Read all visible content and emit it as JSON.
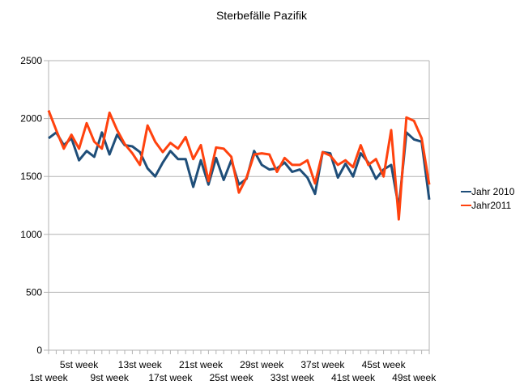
{
  "chart_data": {
    "type": "line",
    "title": "Sterbefälle Pazifik",
    "xlabel": "",
    "ylabel": "",
    "ylim": [
      0,
      2500
    ],
    "yticks": [
      0,
      500,
      1000,
      1500,
      2000,
      2500
    ],
    "grid": true,
    "legend_position": "right",
    "x_tick_labels": [
      {
        "week": 1,
        "label": "1st week",
        "row": 2
      },
      {
        "week": 5,
        "label": "5st week",
        "row": 1
      },
      {
        "week": 9,
        "label": "9st week",
        "row": 2
      },
      {
        "week": 13,
        "label": "13st week",
        "row": 1
      },
      {
        "week": 17,
        "label": "17st week",
        "row": 2
      },
      {
        "week": 21,
        "label": "21st week",
        "row": 1
      },
      {
        "week": 25,
        "label": "25st week",
        "row": 2
      },
      {
        "week": 29,
        "label": "29st week",
        "row": 1
      },
      {
        "week": 33,
        "label": "33st week",
        "row": 2
      },
      {
        "week": 37,
        "label": "37st week",
        "row": 1
      },
      {
        "week": 41,
        "label": "41st week",
        "row": 2
      },
      {
        "week": 45,
        "label": "45st week",
        "row": 1
      },
      {
        "week": 49,
        "label": "49st week",
        "row": 2
      }
    ],
    "x": [
      1,
      2,
      3,
      4,
      5,
      6,
      7,
      8,
      9,
      10,
      11,
      12,
      13,
      14,
      15,
      16,
      17,
      18,
      19,
      20,
      21,
      22,
      23,
      24,
      25,
      26,
      27,
      28,
      29,
      30,
      31,
      32,
      33,
      34,
      35,
      36,
      37,
      38,
      39,
      40,
      41,
      42,
      43,
      44,
      45,
      46,
      47,
      48,
      49,
      50,
      51
    ],
    "series": [
      {
        "name": "Jahr 2010",
        "color": "#1f4e79",
        "values": [
          1830,
          1880,
          1770,
          1830,
          1640,
          1720,
          1670,
          1880,
          1690,
          1860,
          1770,
          1760,
          1710,
          1570,
          1500,
          1620,
          1720,
          1650,
          1650,
          1410,
          1640,
          1430,
          1660,
          1470,
          1640,
          1430,
          1480,
          1720,
          1600,
          1560,
          1570,
          1620,
          1540,
          1560,
          1490,
          1350,
          1710,
          1700,
          1490,
          1610,
          1500,
          1700,
          1620,
          1480,
          1560,
          1600,
          1230,
          1880,
          1820,
          1800,
          1300
        ]
      },
      {
        "name": "Jahr2011",
        "color": "#ff420e",
        "values": [
          2070,
          1900,
          1740,
          1860,
          1740,
          1960,
          1800,
          1740,
          2050,
          1900,
          1780,
          1700,
          1600,
          1940,
          1800,
          1710,
          1790,
          1740,
          1840,
          1650,
          1770,
          1460,
          1750,
          1740,
          1670,
          1360,
          1490,
          1690,
          1700,
          1690,
          1540,
          1660,
          1600,
          1600,
          1640,
          1440,
          1710,
          1680,
          1600,
          1640,
          1580,
          1770,
          1600,
          1650,
          1500,
          1900,
          1130,
          2010,
          1980,
          1830,
          1430
        ]
      }
    ]
  }
}
